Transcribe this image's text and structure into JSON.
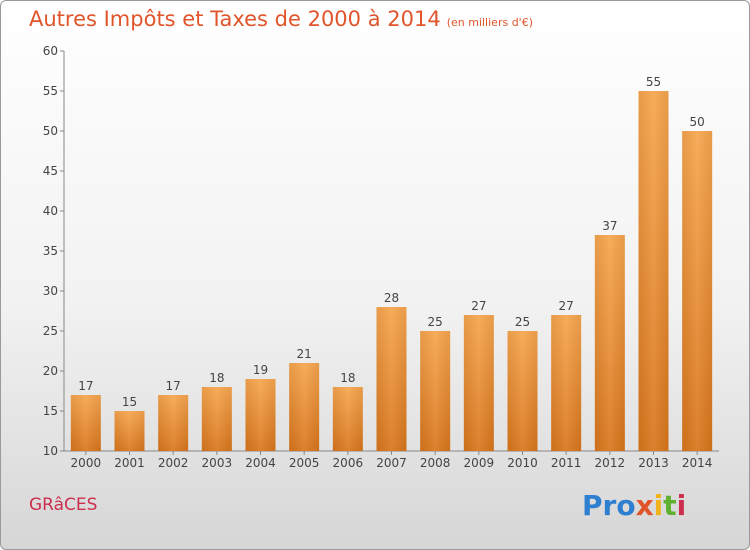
{
  "header": {
    "title": "Autres Impôts et Taxes de 2000 à 2014",
    "subtitle": "(en milliers d'€)"
  },
  "footer": {
    "city": "GRâCES",
    "logo": [
      "Pro",
      "x",
      "i",
      "t",
      "i"
    ]
  },
  "colors": {
    "title": "#e0552b",
    "bar_top": "#f7a64f",
    "bar_bottom": "#d9761c",
    "city": "#cc2f4e"
  },
  "chart_data": {
    "type": "bar",
    "title": "Autres Impôts et Taxes de 2000 à 2014",
    "subtitle": "(en milliers d'€)",
    "categories": [
      "2000",
      "2001",
      "2002",
      "2003",
      "2004",
      "2005",
      "2006",
      "2007",
      "2008",
      "2009",
      "2010",
      "2011",
      "2012",
      "2013",
      "2014"
    ],
    "values": [
      17,
      15,
      17,
      18,
      19,
      21,
      18,
      28,
      25,
      27,
      25,
      27,
      37,
      55,
      50
    ],
    "ylim": [
      10,
      60
    ],
    "yticks": [
      10,
      15,
      20,
      25,
      30,
      35,
      40,
      45,
      50,
      55,
      60
    ],
    "grid": false,
    "data_labels": true
  }
}
